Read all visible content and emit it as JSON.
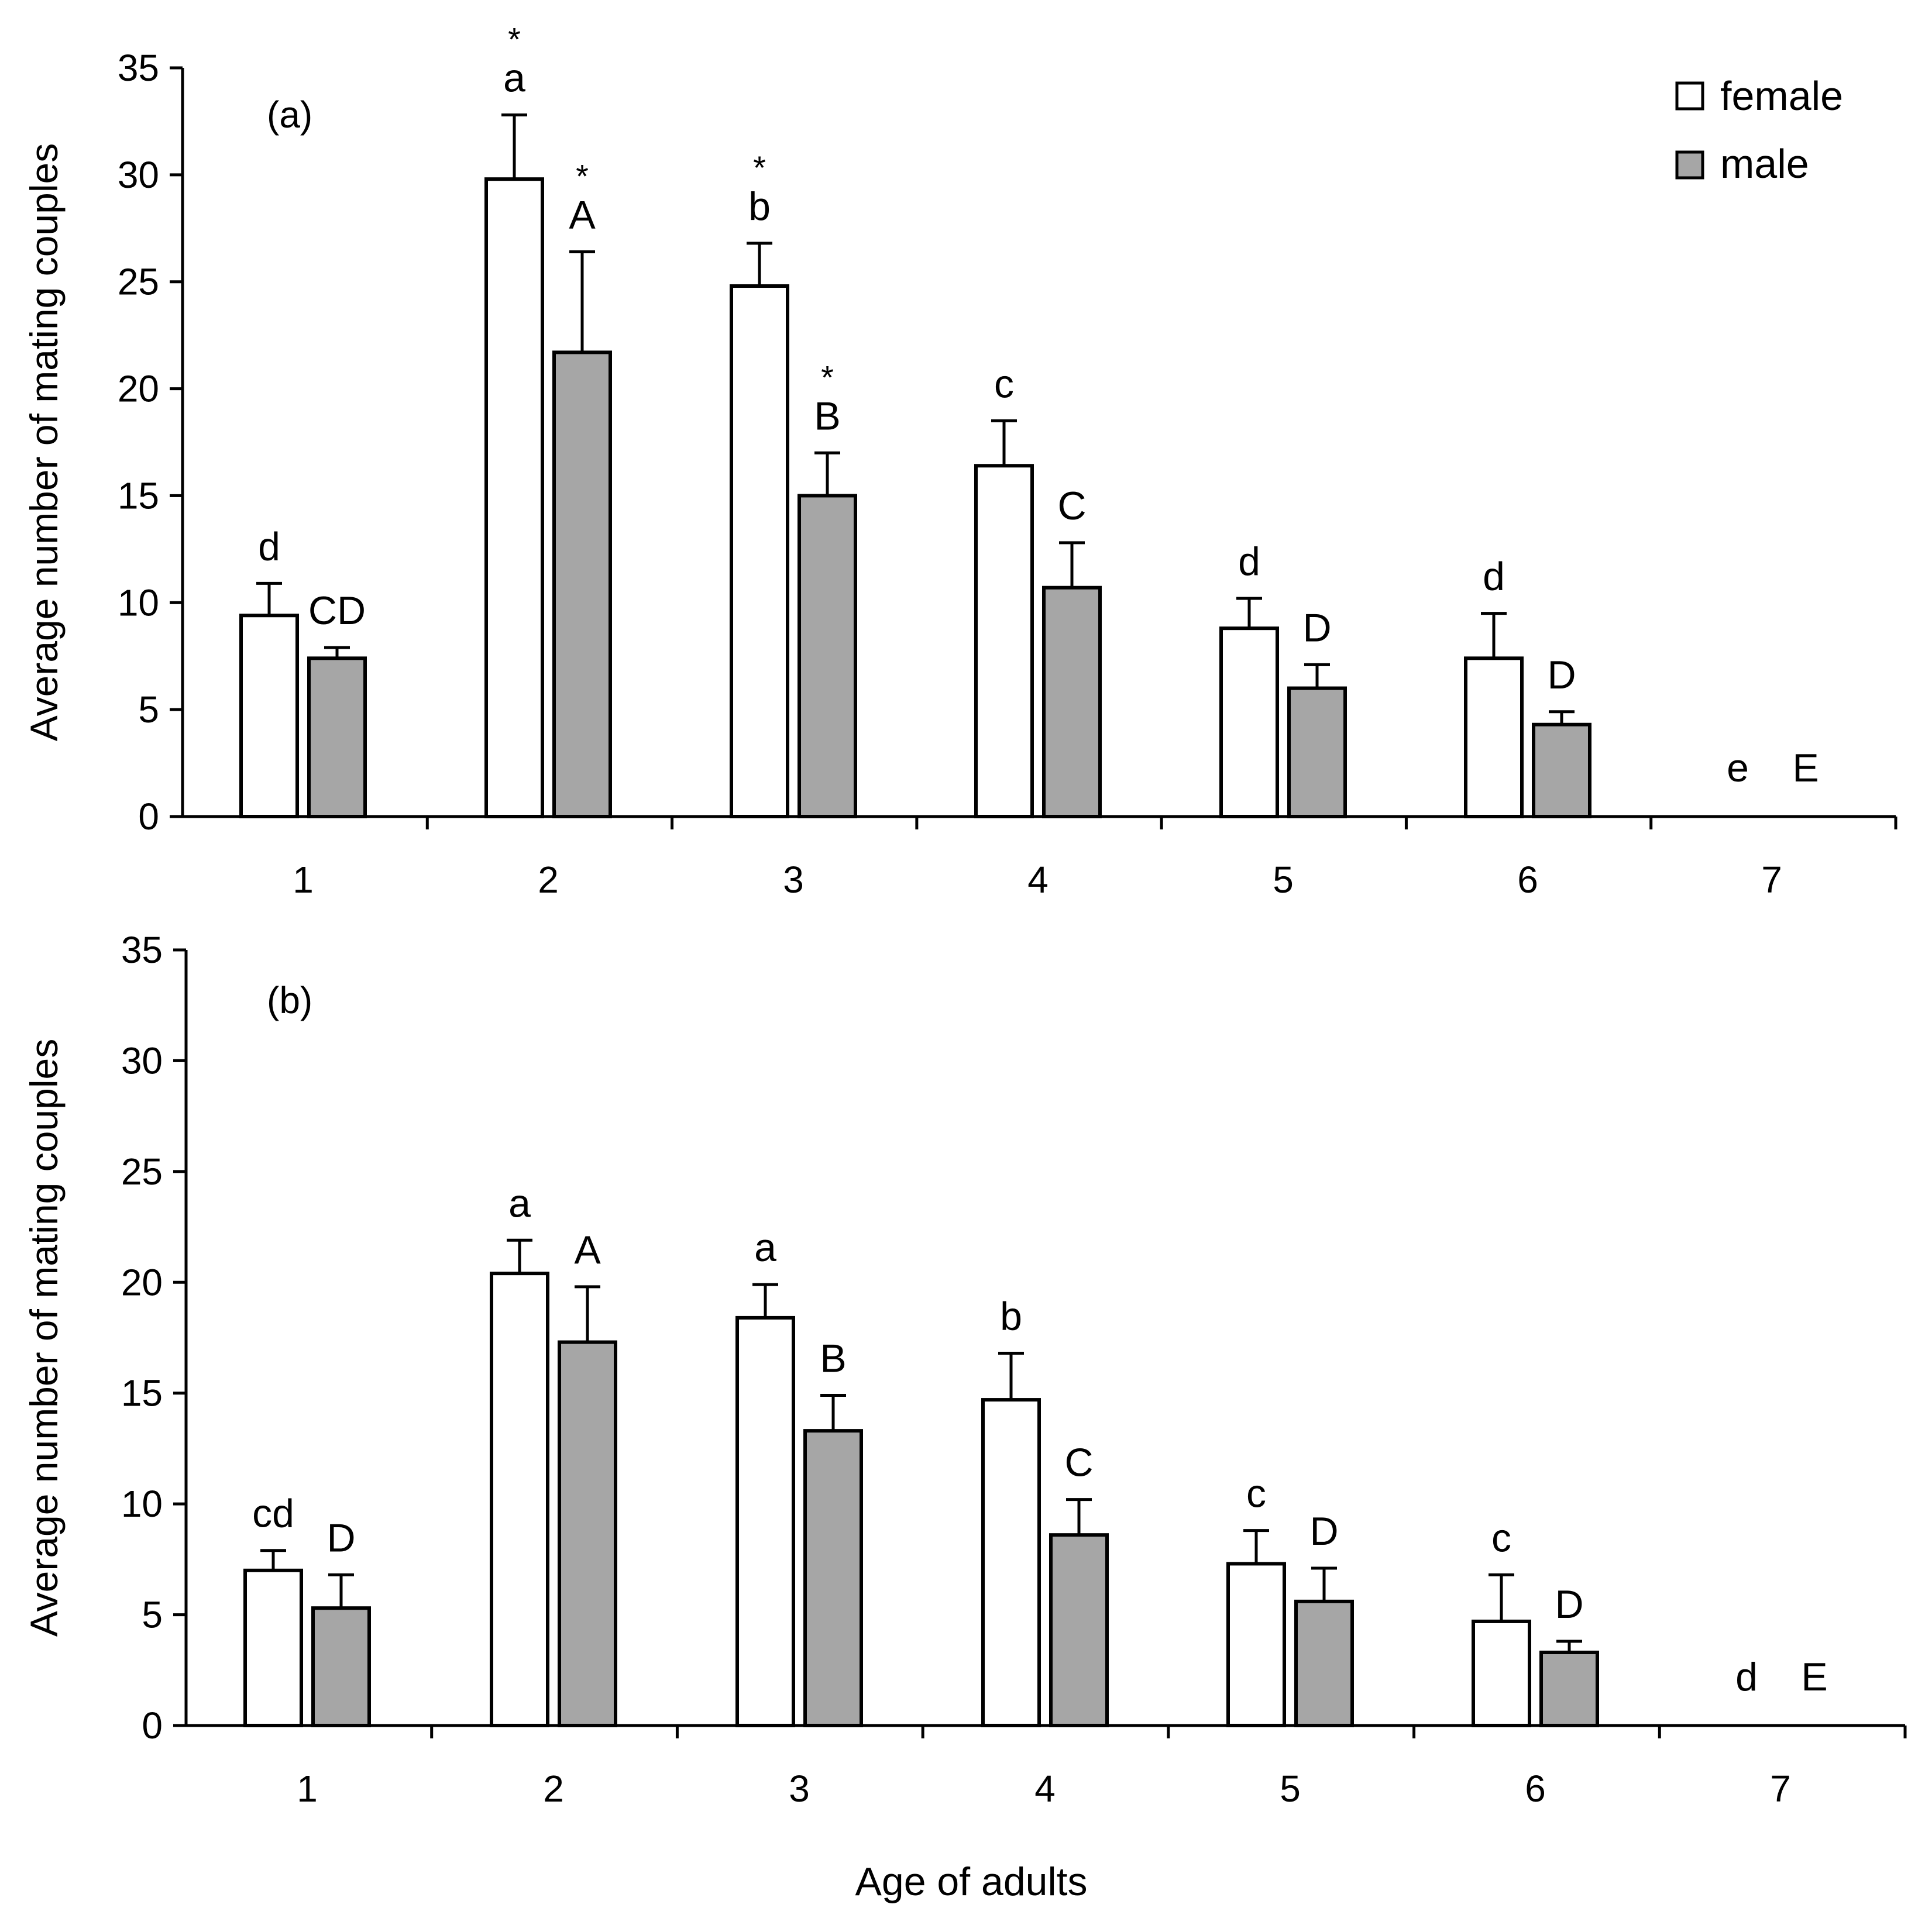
{
  "figure": {
    "xlabel": "Age of adults"
  },
  "legend": {
    "female": {
      "label": "female",
      "fill": "#ffffff"
    },
    "male": {
      "label": "male",
      "fill": "#a6a6a6"
    }
  },
  "chart_data": [
    {
      "type": "bar",
      "panel_label": "(a)",
      "ylabel": "Average number of mating couples",
      "categories": [
        "1",
        "2",
        "3",
        "4",
        "5",
        "6",
        "7"
      ],
      "ylim": [
        0,
        35
      ],
      "yticks": [
        "0",
        "5",
        "10",
        "15",
        "20",
        "25",
        "30",
        "35"
      ],
      "series": [
        {
          "name": "female",
          "values": [
            9.4,
            29.8,
            24.8,
            16.4,
            8.8,
            7.4,
            0
          ],
          "errors": [
            1.5,
            3.0,
            2.0,
            2.1,
            1.4,
            2.1,
            0
          ],
          "letters": [
            "d",
            "a",
            "b",
            "c",
            "d",
            "d",
            "e"
          ],
          "stars": [
            false,
            true,
            true,
            false,
            false,
            false,
            false
          ]
        },
        {
          "name": "male",
          "values": [
            7.4,
            21.7,
            15.0,
            10.7,
            6.0,
            4.3,
            0
          ],
          "errors": [
            0.5,
            4.7,
            2.0,
            2.1,
            1.1,
            0.6,
            0
          ],
          "letters": [
            "CD",
            "A",
            "B",
            "C",
            "D",
            "D",
            "E"
          ],
          "stars": [
            false,
            true,
            true,
            false,
            false,
            false,
            false
          ]
        }
      ],
      "star_symbol": "*"
    },
    {
      "type": "bar",
      "panel_label": "(b)",
      "ylabel": "Average number of mating couples",
      "categories": [
        "1",
        "2",
        "3",
        "4",
        "5",
        "6",
        "7"
      ],
      "ylim": [
        0,
        35
      ],
      "yticks": [
        "0",
        "5",
        "10",
        "15",
        "20",
        "25",
        "30",
        "35"
      ],
      "series": [
        {
          "name": "female",
          "values": [
            7.0,
            20.4,
            18.4,
            14.7,
            7.3,
            4.7,
            0
          ],
          "errors": [
            0.9,
            1.5,
            1.5,
            2.1,
            1.5,
            2.1,
            0
          ],
          "letters": [
            "cd",
            "a",
            "a",
            "b",
            "c",
            "c",
            "d"
          ],
          "stars": [
            false,
            false,
            false,
            false,
            false,
            false,
            false
          ]
        },
        {
          "name": "male",
          "values": [
            5.3,
            17.3,
            13.3,
            8.6,
            5.6,
            3.3,
            0
          ],
          "errors": [
            1.5,
            2.5,
            1.6,
            1.6,
            1.5,
            0.5,
            0
          ],
          "letters": [
            "D",
            "A",
            "B",
            "C",
            "D",
            "D",
            "E"
          ],
          "stars": [
            false,
            false,
            false,
            false,
            false,
            false,
            false
          ]
        }
      ],
      "star_symbol": "*"
    }
  ]
}
